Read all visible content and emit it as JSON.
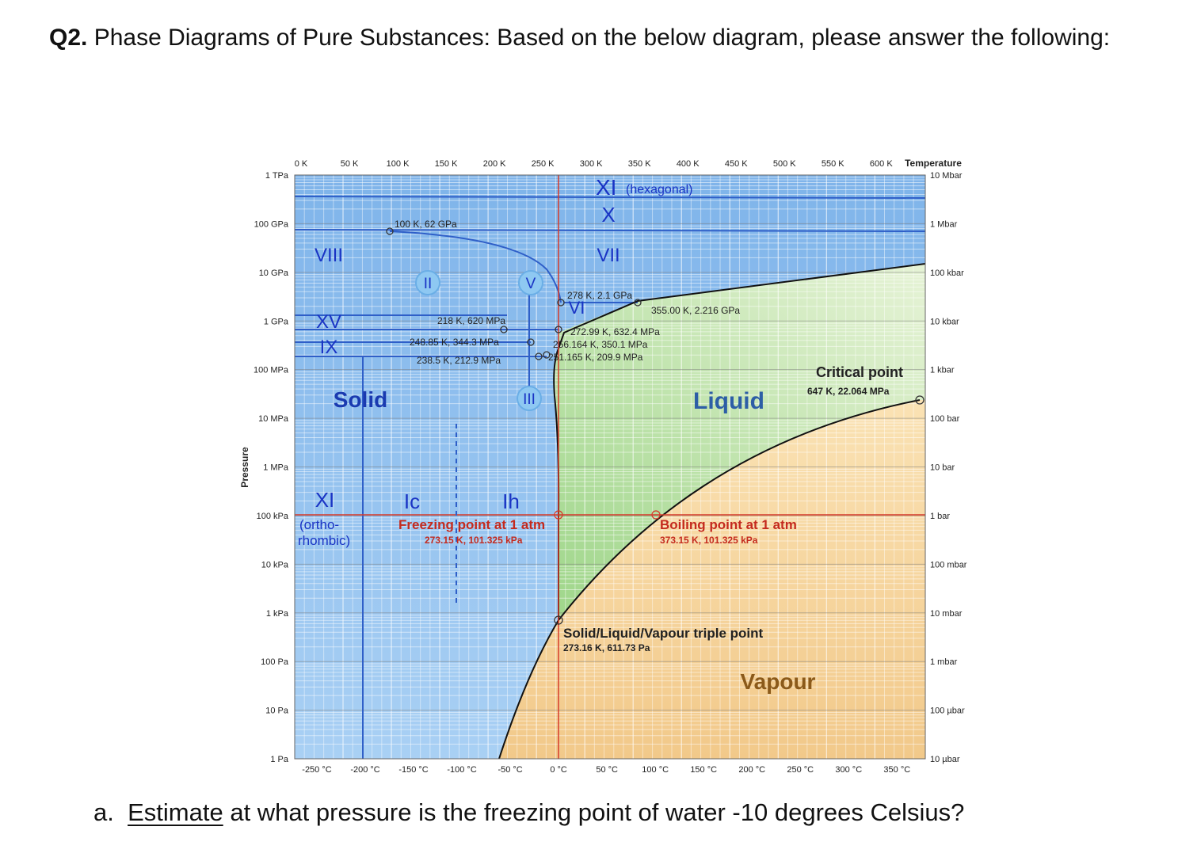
{
  "question": {
    "number": "Q2.",
    "text": "Phase Diagrams of Pure Substances: Based on the below diagram, please answer the following:"
  },
  "diagram": {
    "top_labels": [
      "0 K",
      "50 K",
      "100 K",
      "150 K",
      "200 K",
      "250 K",
      "300 K",
      "350 K",
      "400 K",
      "450 K",
      "500 K",
      "550 K",
      "600 K"
    ],
    "top_title": "Temperature",
    "bottom_labels": [
      "-250 °C",
      "-200 °C",
      "-150 °C",
      "-100 °C",
      "-50 °C",
      "0 °C",
      "50 °C",
      "100 °C",
      "150 °C",
      "200 °C",
      "250 °C",
      "300 °C",
      "350 °C"
    ],
    "left_labels": [
      "1 TPa",
      "100 GPa",
      "10 GPa",
      "1 GPa",
      "100 MPa",
      "10 MPa",
      "1 MPa",
      "100 kPa",
      "10 kPa",
      "1 kPa",
      "100 Pa",
      "10 Pa",
      "1 Pa"
    ],
    "left_title": "Pressure",
    "right_labels": [
      "10 Mbar",
      "1 Mbar",
      "100 kbar",
      "10 kbar",
      "1 kbar",
      "100 bar",
      "10 bar",
      "1 bar",
      "100 mbar",
      "10 mbar",
      "1 mbar",
      "100 µbar",
      "10 µbar"
    ],
    "phase_labels": [
      "XI",
      "(hexagonal)",
      "X",
      "VII",
      "VIII",
      "VI",
      "XV",
      "IX",
      "Solid",
      "Liquid",
      "XI",
      "(ortho-",
      "rhombic)",
      "Ic",
      "Ih",
      "Vapour"
    ],
    "circled_phases": [
      "II",
      "V",
      "III"
    ],
    "point_labels": [
      "100 K, 62 GPa",
      "278 K, 2.1 GPa",
      "355.00 K, 2.216 GPa",
      "218 K, 620 MPa",
      "272.99 K, 632.4 MPa",
      "248.85 K, 344.3 MPa",
      "256.164 K, 350.1 MPa",
      "238.5 K, 212.9 MPa",
      "251.165 K, 209.9 MPa"
    ],
    "critical": {
      "title": "Critical point",
      "value": "647 K, 22.064 MPa"
    },
    "freezing": {
      "title": "Freezing point at 1 atm",
      "value": "273.15 K, 101.325 kPa"
    },
    "boiling": {
      "title": "Boiling point at 1 atm",
      "value": "373.15 K, 101.325 kPa"
    },
    "triple": {
      "title": "Solid/Liquid/Vapour triple point",
      "value": "273.16 K, 611.73 Pa"
    }
  },
  "part_a": {
    "letter": "a.",
    "verb": "Estimate",
    "rest": "at what pressure is the freezing point of water -10 degrees Celsius?"
  }
}
